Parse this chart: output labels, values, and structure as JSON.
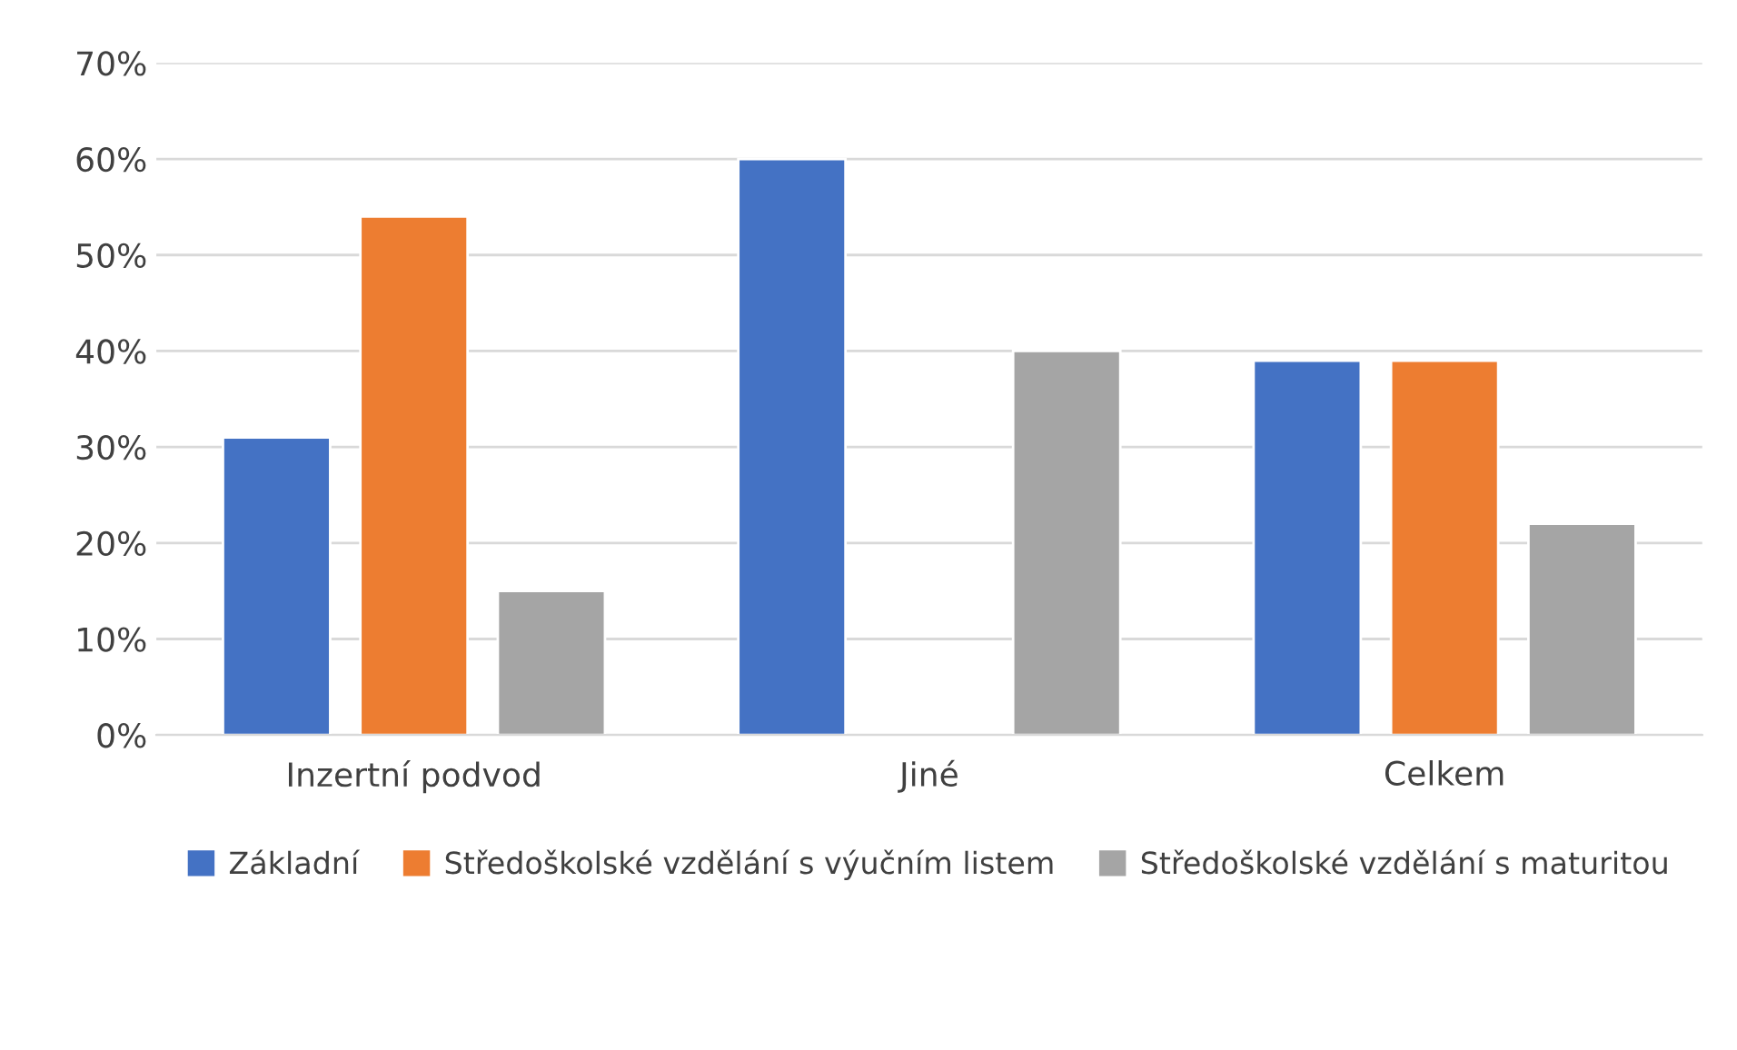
{
  "chart_data": {
    "type": "bar",
    "categories": [
      "Inzertní podvod",
      "Jiné",
      "Celkem"
    ],
    "series": [
      {
        "name": "Základní",
        "color": "#4472c4",
        "values": [
          31,
          60,
          39
        ]
      },
      {
        "name": "Středoškolské vzdělání s výučním listem",
        "color": "#ed7d31",
        "values": [
          54,
          null,
          39
        ]
      },
      {
        "name": "Středoškolské vzdělání s maturitou",
        "color": "#a5a5a5",
        "values": [
          15,
          40,
          22
        ]
      }
    ],
    "ylim": [
      0,
      70
    ],
    "yticks": [
      {
        "value": 0,
        "label": "0%"
      },
      {
        "value": 10,
        "label": "10%"
      },
      {
        "value": 20,
        "label": "20%"
      },
      {
        "value": 30,
        "label": "30%"
      },
      {
        "value": 40,
        "label": "40%"
      },
      {
        "value": 50,
        "label": "50%"
      },
      {
        "value": 60,
        "label": "60%"
      },
      {
        "value": 70,
        "label": "70%"
      }
    ],
    "grid": "y",
    "legend": "bottom"
  }
}
